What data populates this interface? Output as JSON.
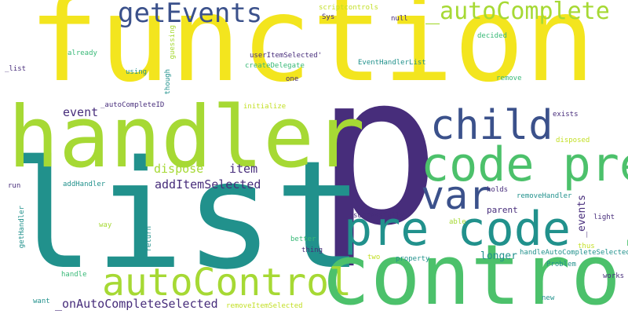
{
  "words": {
    "function": "function",
    "p": "p",
    "list": "list",
    "handler": "handler",
    "control": "control",
    "code_pre": "code pre",
    "pre_code": "pre code",
    "autoControl": "autoControl",
    "child": "child",
    "getEvents": "getEvents",
    "autoComplete": "_autoComplete",
    "var": "var",
    "onAutoCompleteSelected": "_onAutoCompleteSelected",
    "addItemSelected": "addItemSelected",
    "event": "event",
    "dispose": "dispose",
    "item": "item",
    "longer": "longer",
    "parent": "parent",
    "events": "_events",
    "autoCompleteID": "_autoCompleteID",
    "list_small": "_list",
    "scriptcontrols": "scriptcontrols",
    "Sys": "Sys",
    "null": "null",
    "decided": "decided",
    "guessing": "guessing",
    "already": "already",
    "userItemSelected": "userItemSelected'",
    "createDelegate": "createDelegate",
    "EventHandlerList": "EventHandlerList",
    "using": "using",
    "though": "though",
    "one": "one",
    "remove": "remove",
    "initialize": "initialize",
    "exists": "exists",
    "disposed": "disposed",
    "run": "run",
    "addHandler": "addHandler",
    "holds": "holds",
    "removeHandler": "removeHandler",
    "light": "light",
    "getHandler": "getHandler",
    "successfully": "successfully",
    "way": "way",
    "return": "return",
    "able": "able",
    "better": "better",
    "thus": "thus",
    "thing": "thing",
    "two": "two",
    "property": "property",
    "handleAutoCompleteSelected": "handleAutoCompleteSelected",
    "Problem": "Problem",
    "handle": "handle",
    "works": "works",
    "want": "want",
    "removeItemSelected": "removeItemSelected",
    "new": "new"
  },
  "colors": {
    "yellow": "#f3e51e",
    "light_green": "#a6d934",
    "green": "#4cc16b",
    "teal": "#21918c",
    "blue": "#3b518b",
    "purple": "#472d7b",
    "background": "#ffffff"
  }
}
